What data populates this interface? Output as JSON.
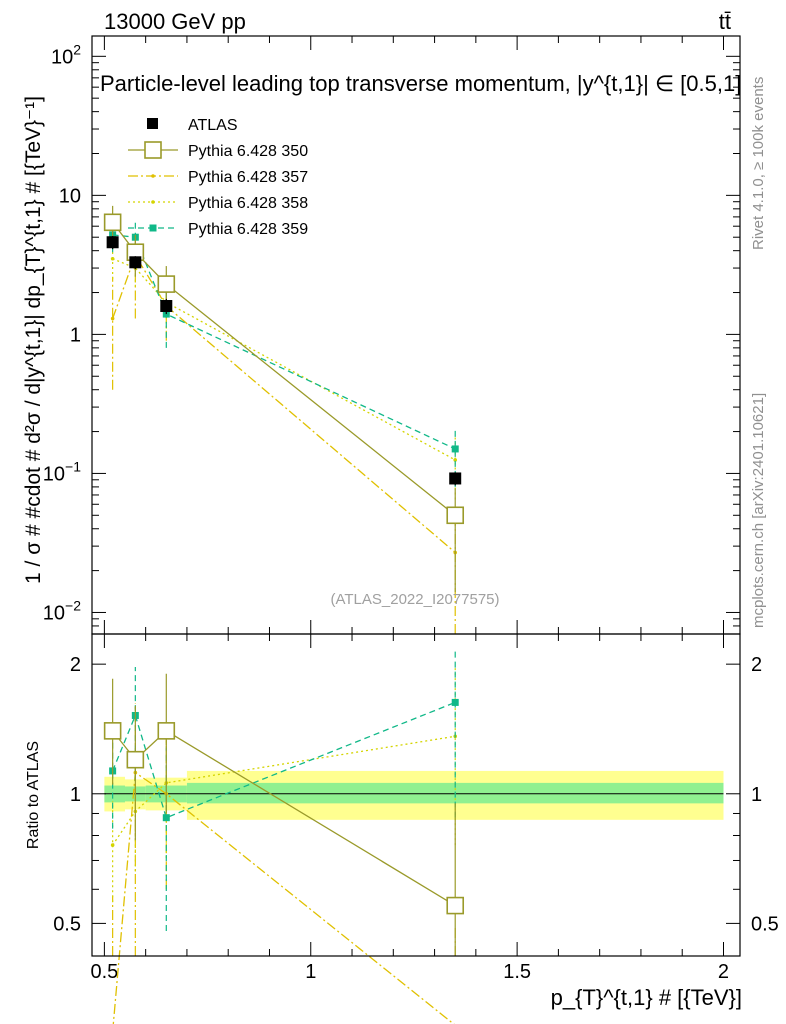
{
  "header": {
    "energy_label": "13000 GeV pp",
    "process_label": "tt̄"
  },
  "side_text": {
    "rivet": "Rivet 4.1.0, ≥ 100k events",
    "mcplots": "mcplots.cern.ch [arXiv:2401.10621]"
  },
  "watermark": "(ATLAS_2022_I2077575)",
  "colors": {
    "data": "#000000",
    "pythia_350": "#9a9a2a",
    "pythia_357": "#e0c000",
    "pythia_358": "#d4d400",
    "pythia_359": "#10b888",
    "band_inner": "#90f090",
    "band_outer": "#ffff90"
  },
  "chart_data": [
    {
      "type": "line",
      "title": "Particle-level leading top transverse momentum, |y^{t,1}| ∈ [0.5,1]",
      "ylabel": "1 / σ # #cdot # d²σ / d|y^{t,1}| dp_{T}^{t,1} # [{TeV}⁻¹]",
      "yscale": "log",
      "ylim": [
        0.007,
        140
      ],
      "xlim": [
        0.47,
        2.04
      ],
      "ytick_labels": [
        {
          "value": 100,
          "base": "10",
          "exp": "2"
        },
        {
          "value": 10,
          "base": "10",
          "exp": ""
        },
        {
          "value": 1,
          "base": "1",
          "exp": ""
        },
        {
          "value": 0.1,
          "base": "10",
          "exp": "−1"
        },
        {
          "value": 0.01,
          "base": "10",
          "exp": "−2"
        }
      ],
      "legend": [
        {
          "key": "data",
          "label": "ATLAS"
        },
        {
          "key": "p350",
          "label": "Pythia 6.428 350"
        },
        {
          "key": "p357",
          "label": "Pythia 6.428 357"
        },
        {
          "key": "p358",
          "label": "Pythia 6.428 358"
        },
        {
          "key": "p359",
          "label": "Pythia 6.428 359"
        }
      ],
      "series": [
        {
          "key": "data",
          "name": "ATLAS",
          "x": [
            0.52,
            0.575,
            0.65,
            1.35
          ],
          "y": [
            4.6,
            3.3,
            1.6,
            0.092
          ],
          "err_low": [
            0.5,
            0.35,
            0.2,
            0.01
          ],
          "err_high": [
            0.5,
            0.35,
            0.2,
            0.01
          ]
        },
        {
          "key": "p350",
          "name": "Pythia 6.428 350",
          "x": [
            0.52,
            0.575,
            0.65,
            1.35
          ],
          "y": [
            6.4,
            3.9,
            2.3,
            0.05
          ],
          "err_low": [
            1.6,
            1.3,
            0.8,
            0.036
          ],
          "err_high": [
            2.0,
            1.3,
            0.8,
            0.028
          ]
        },
        {
          "key": "p357",
          "name": "Pythia 6.428 357",
          "x": [
            0.52,
            0.575,
            0.65,
            1.35
          ],
          "y": [
            1.3,
            3.7,
            1.6,
            0.027
          ],
          "err_low": [
            0.9,
            2.4,
            0.7,
            0.026
          ],
          "err_high": [
            1.3,
            1.6,
            0.6,
            0.02
          ]
        },
        {
          "key": "p358",
          "name": "Pythia 6.428 358",
          "x": [
            0.52,
            0.575,
            0.65,
            1.35
          ],
          "y": [
            3.5,
            3.0,
            1.7,
            0.125
          ],
          "err_low": [
            1.0,
            0.8,
            0.6,
            0.06
          ],
          "err_high": [
            1.0,
            0.8,
            0.6,
            0.06
          ]
        },
        {
          "key": "p359",
          "name": "Pythia 6.428 359",
          "x": [
            0.52,
            0.575,
            0.65,
            1.35
          ],
          "y": [
            5.2,
            5.0,
            1.4,
            0.15
          ],
          "err_low": [
            1.3,
            1.5,
            0.6,
            0.07
          ],
          "err_high": [
            1.3,
            1.5,
            0.6,
            0.06
          ]
        }
      ]
    },
    {
      "type": "line",
      "title": "",
      "ylabel": "Ratio to ATLAS",
      "xlabel": "p_{T}^{t,1} # [{TeV}]",
      "yscale": "log",
      "ylim": [
        0.42,
        2.35
      ],
      "xlim": [
        0.47,
        2.04
      ],
      "ytick_labels": [
        {
          "value": 2,
          "label": "2"
        },
        {
          "value": 1,
          "label": "1"
        },
        {
          "value": 0.5,
          "label": "0.5"
        }
      ],
      "xtick_labels": [
        {
          "value": 0.5,
          "label": "0.5"
        },
        {
          "value": 1,
          "label": "1"
        },
        {
          "value": 1.5,
          "label": "1.5"
        },
        {
          "value": 2,
          "label": "2"
        }
      ],
      "bands": [
        {
          "x0": 0.5,
          "x1": 0.55,
          "inner": [
            0.955,
            1.045
          ],
          "outer": [
            0.91,
            1.095
          ]
        },
        {
          "x0": 0.55,
          "x1": 0.6,
          "inner": [
            0.96,
            1.04
          ],
          "outer": [
            0.92,
            1.08
          ]
        },
        {
          "x0": 0.6,
          "x1": 0.7,
          "inner": [
            0.955,
            1.045
          ],
          "outer": [
            0.915,
            1.09
          ]
        },
        {
          "x0": 0.7,
          "x1": 2.0,
          "inner": [
            0.95,
            1.06
          ],
          "outer": [
            0.87,
            1.13
          ]
        }
      ],
      "series": [
        {
          "key": "p350",
          "name": "Pythia 6.428 350",
          "x": [
            0.52,
            0.575,
            0.65,
            1.35
          ],
          "y": [
            1.4,
            1.2,
            1.4,
            0.55
          ],
          "err_low": [
            0.35,
            0.42,
            0.5,
            0.45
          ],
          "err_high": [
            0.45,
            0.4,
            0.5,
            0.4
          ]
        },
        {
          "key": "p357",
          "name": "Pythia 6.428 357",
          "x": [
            0.52,
            0.575,
            0.65,
            1.35
          ],
          "y": [
            0.28,
            1.12,
            1.0,
            0.29
          ],
          "err_low": [
            0.2,
            0.7,
            0.4,
            0.2
          ],
          "err_high": [
            0.3,
            0.5,
            0.35,
            0.2
          ]
        },
        {
          "key": "p358",
          "name": "Pythia 6.428 358",
          "x": [
            0.52,
            0.575,
            0.65,
            1.35
          ],
          "y": [
            0.76,
            0.91,
            1.06,
            1.36
          ],
          "err_low": [
            0.2,
            0.25,
            0.35,
            0.6
          ],
          "err_high": [
            0.2,
            0.25,
            0.35,
            0.6
          ]
        },
        {
          "key": "p359",
          "name": "Pythia 6.428 359",
          "x": [
            0.52,
            0.575,
            0.65,
            1.35
          ],
          "y": [
            1.13,
            1.52,
            0.88,
            1.63
          ],
          "err_low": [
            0.3,
            0.45,
            0.4,
            0.75
          ],
          "err_high": [
            0.3,
            0.45,
            0.4,
            0.55
          ]
        }
      ]
    }
  ]
}
